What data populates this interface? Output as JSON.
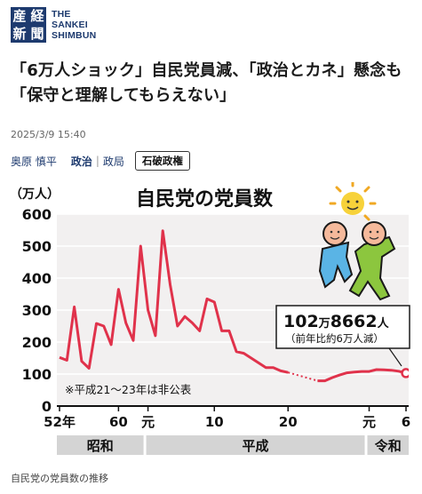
{
  "logo": {
    "mark_chars": [
      "産",
      "経",
      "新",
      "聞"
    ],
    "text_lines": [
      "THE",
      "SANKEI",
      "SHIMBUN"
    ],
    "color": "#1d3a6e"
  },
  "article": {
    "headline": "「6万人ショック」自民党員減、「政治とカネ」懸念も「保守と理解してもらえない」",
    "timestamp": "2025/3/9 15:40",
    "author": "奥原 慎平",
    "category": "政治",
    "separator": "|",
    "subcategory": "政局",
    "tag": "石破政権"
  },
  "caption": "自民党の党員数の推移",
  "chart_data": {
    "type": "line",
    "title": "自民党の党員数",
    "ylabel": "（万人）",
    "ylim": [
      0,
      600
    ],
    "yticks": [
      "0",
      "100",
      "200",
      "300",
      "400",
      "500",
      "600"
    ],
    "x_tick_labels": [
      "52年",
      "60",
      "元",
      "10",
      "20",
      "元",
      "6"
    ],
    "x_tick_years": [
      1977,
      1985,
      1989,
      1998,
      2008,
      2019,
      2024
    ],
    "eras": [
      {
        "label": "昭和",
        "from": 1977,
        "to": 1988
      },
      {
        "label": "平成",
        "from": 1989,
        "to": 2018
      },
      {
        "label": "令和",
        "from": 2019,
        "to": 2024
      }
    ],
    "note": "※平成21～23年は非公表",
    "gap": {
      "from": 2008,
      "to": 2012
    },
    "series": [
      {
        "color": "#e0324b",
        "x": [
          1977,
          1978,
          1979,
          1980,
          1981,
          1982,
          1983,
          1984,
          1985,
          1986,
          1987,
          1988,
          1989,
          1990,
          1991,
          1992,
          1993,
          1994,
          1995,
          1996,
          1997,
          1998,
          1999,
          2000,
          2001,
          2002,
          2003,
          2004,
          2005,
          2006,
          2007,
          2008,
          2012,
          2013,
          2014,
          2015,
          2016,
          2017,
          2018,
          2019,
          2020,
          2021,
          2022,
          2023,
          2024
        ],
        "y": [
          152,
          143,
          310,
          140,
          118,
          258,
          250,
          192,
          365,
          260,
          205,
          500,
          300,
          220,
          548,
          380,
          250,
          280,
          260,
          235,
          335,
          325,
          235,
          235,
          170,
          165,
          150,
          135,
          120,
          120,
          110,
          105,
          79,
          79,
          89,
          97,
          104,
          106,
          108,
          108,
          114,
          113,
          112,
          109,
          103
        ]
      }
    ],
    "callout": {
      "value": "102万8662人",
      "value_main": "102",
      "value_unit1": "万",
      "value_main2": "8662",
      "value_unit2": "人",
      "sub": "（前年比約6万人減）"
    },
    "colors": {
      "line": "#e0324b",
      "plot_bg": "#f2f0f0",
      "era_bar": "#d4d4d4"
    }
  }
}
